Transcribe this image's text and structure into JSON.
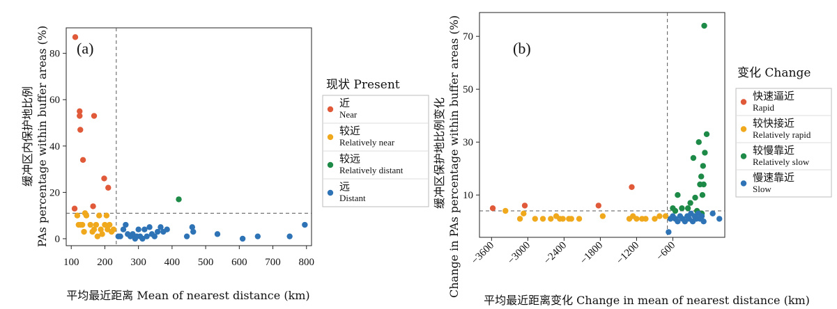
{
  "chart_data": [
    {
      "type": "scatter",
      "panel_label": "(a)",
      "xlabel": "平均最近距离 Mean of nearest distance (km)",
      "ylabel_zh": "缓冲区内保护地比例",
      "ylabel_en": "PAs percentage within buffer areas (%)",
      "xlim": [
        85,
        815
      ],
      "ylim": [
        -3,
        91
      ],
      "xticks": [
        100,
        200,
        300,
        400,
        500,
        600,
        700,
        800
      ],
      "yticks": [
        0,
        20,
        40,
        60,
        80
      ],
      "ref_lines": {
        "x": 234,
        "y": 11
      },
      "legend": {
        "title": "现状 Present",
        "entries": [
          {
            "zh": "近",
            "en": "Near",
            "color": "#E05A3A"
          },
          {
            "zh": "较近",
            "en": "Relatively near",
            "color": "#F0A81C"
          },
          {
            "zh": "较远",
            "en": "Relatively distant",
            "color": "#1E8A47"
          },
          {
            "zh": "远",
            "en": "Distant",
            "color": "#2E73B5"
          }
        ]
      },
      "series": [
        {
          "name": "近 Near",
          "color": "#E05A3A",
          "points": [
            [
              112,
              87
            ],
            [
              125,
              55
            ],
            [
              125,
              53
            ],
            [
              127,
              47
            ],
            [
              135,
              34
            ],
            [
              168,
              53
            ],
            [
              198,
              26
            ],
            [
              210,
              22
            ],
            [
              110,
              13
            ],
            [
              165,
              14
            ]
          ]
        },
        {
          "name": "较近 Relatively near",
          "color": "#F0A81C",
          "points": [
            [
              118,
              10
            ],
            [
              122,
              6
            ],
            [
              128,
              6
            ],
            [
              133,
              6
            ],
            [
              138,
              3
            ],
            [
              141,
              11
            ],
            [
              145,
              10
            ],
            [
              157,
              6
            ],
            [
              163,
              3
            ],
            [
              168,
              4
            ],
            [
              174,
              6
            ],
            [
              178,
              1
            ],
            [
              183,
              10
            ],
            [
              188,
              4
            ],
            [
              192,
              2
            ],
            [
              200,
              6
            ],
            [
              205,
              10
            ],
            [
              208,
              4
            ],
            [
              214,
              6
            ],
            [
              220,
              3
            ],
            [
              226,
              4
            ]
          ]
        },
        {
          "name": "较远 Relatively distant",
          "color": "#1E8A47",
          "points": [
            [
              420,
              17
            ]
          ]
        },
        {
          "name": "远 Distant",
          "color": "#2E73B5",
          "points": [
            [
              240,
              1
            ],
            [
              246,
              1
            ],
            [
              255,
              4
            ],
            [
              262,
              6
            ],
            [
              268,
              2
            ],
            [
              276,
              1
            ],
            [
              283,
              2
            ],
            [
              290,
              0
            ],
            [
              295,
              1
            ],
            [
              300,
              4
            ],
            [
              305,
              1
            ],
            [
              312,
              0
            ],
            [
              318,
              4
            ],
            [
              325,
              1
            ],
            [
              333,
              5
            ],
            [
              340,
              2
            ],
            [
              348,
              1
            ],
            [
              357,
              3
            ],
            [
              366,
              5
            ],
            [
              374,
              3
            ],
            [
              385,
              4
            ],
            [
              444,
              1
            ],
            [
              460,
              5
            ],
            [
              463,
              3
            ],
            [
              535,
              2
            ],
            [
              610,
              0
            ],
            [
              655,
              1
            ],
            [
              750,
              1
            ],
            [
              795,
              6
            ]
          ]
        }
      ]
    },
    {
      "type": "scatter",
      "panel_label": "(b)",
      "xlabel": "平均最近距离变化 Change in mean of nearest distance (km)",
      "ylabel_zh": "缓冲区保护地比例变化",
      "ylabel_en": "Change in PAs percentage within buffer areas (%)",
      "xlim": [
        -3800,
        260
      ],
      "ylim": [
        -6,
        79
      ],
      "xticks": [
        -3600,
        -3000,
        -2400,
        -1800,
        -1200,
        -600
      ],
      "yticks": [
        10,
        30,
        50,
        70
      ],
      "ref_lines": {
        "x": -690,
        "y": 4
      },
      "legend": {
        "title": "变化 Change",
        "entries": [
          {
            "zh": "快速逼近",
            "en": "Rapid",
            "color": "#E05A3A"
          },
          {
            "zh": "较快接近",
            "en": "Relatively rapid",
            "color": "#F0A81C"
          },
          {
            "zh": "较慢靠近",
            "en": "Relatively slow",
            "color": "#1E8A47"
          },
          {
            "zh": "慢速靠近",
            "en": "Slow",
            "color": "#2E73B5"
          }
        ]
      },
      "series": [
        {
          "name": "快速逼近 Rapid",
          "color": "#E05A3A",
          "points": [
            [
              -3580,
              5
            ],
            [
              -3050,
              6
            ],
            [
              -1830,
              6
            ],
            [
              -1280,
              13
            ]
          ]
        },
        {
          "name": "较快接近 Relatively rapid",
          "color": "#F0A81C",
          "points": [
            [
              -3370,
              4
            ],
            [
              -3130,
              1
            ],
            [
              -3070,
              3
            ],
            [
              -2880,
              1
            ],
            [
              -2750,
              1
            ],
            [
              -2620,
              1
            ],
            [
              -2530,
              2
            ],
            [
              -2470,
              1
            ],
            [
              -2420,
              1
            ],
            [
              -2320,
              1
            ],
            [
              -2280,
              1
            ],
            [
              -2150,
              1
            ],
            [
              -1760,
              2
            ],
            [
              -1320,
              1
            ],
            [
              -1260,
              2
            ],
            [
              -1200,
              1
            ],
            [
              -1110,
              1
            ],
            [
              -1050,
              1
            ],
            [
              -900,
              1
            ],
            [
              -820,
              2
            ],
            [
              -720,
              2
            ]
          ]
        },
        {
          "name": "较慢靠近 Relatively slow",
          "color": "#1E8A47",
          "points": [
            [
              -80,
              74
            ],
            [
              -40,
              33
            ],
            [
              -170,
              30
            ],
            [
              -260,
              24
            ],
            [
              -70,
              26
            ],
            [
              -100,
              21
            ],
            [
              -130,
              17
            ],
            [
              -150,
              14
            ],
            [
              -90,
              14
            ],
            [
              -110,
              10
            ],
            [
              -230,
              9
            ],
            [
              -310,
              7
            ],
            [
              -520,
              10
            ],
            [
              -600,
              5
            ],
            [
              -450,
              5
            ],
            [
              -350,
              5
            ],
            [
              -560,
              4
            ],
            [
              -120,
              3
            ],
            [
              -200,
              4
            ]
          ]
        },
        {
          "name": "慢速靠近 Slow",
          "color": "#2E73B5",
          "points": [
            [
              -670,
              -4
            ],
            [
              -640,
              1
            ],
            [
              -600,
              2
            ],
            [
              -560,
              1
            ],
            [
              -520,
              0
            ],
            [
              -480,
              2
            ],
            [
              -440,
              1
            ],
            [
              -400,
              0
            ],
            [
              -360,
              2
            ],
            [
              -330,
              1
            ],
            [
              -300,
              3
            ],
            [
              -270,
              0
            ],
            [
              -240,
              2
            ],
            [
              -210,
              1
            ],
            [
              -180,
              3
            ],
            [
              -150,
              1
            ],
            [
              -120,
              2
            ],
            [
              -90,
              0
            ],
            [
              60,
              3
            ],
            [
              170,
              1
            ]
          ]
        }
      ]
    }
  ]
}
